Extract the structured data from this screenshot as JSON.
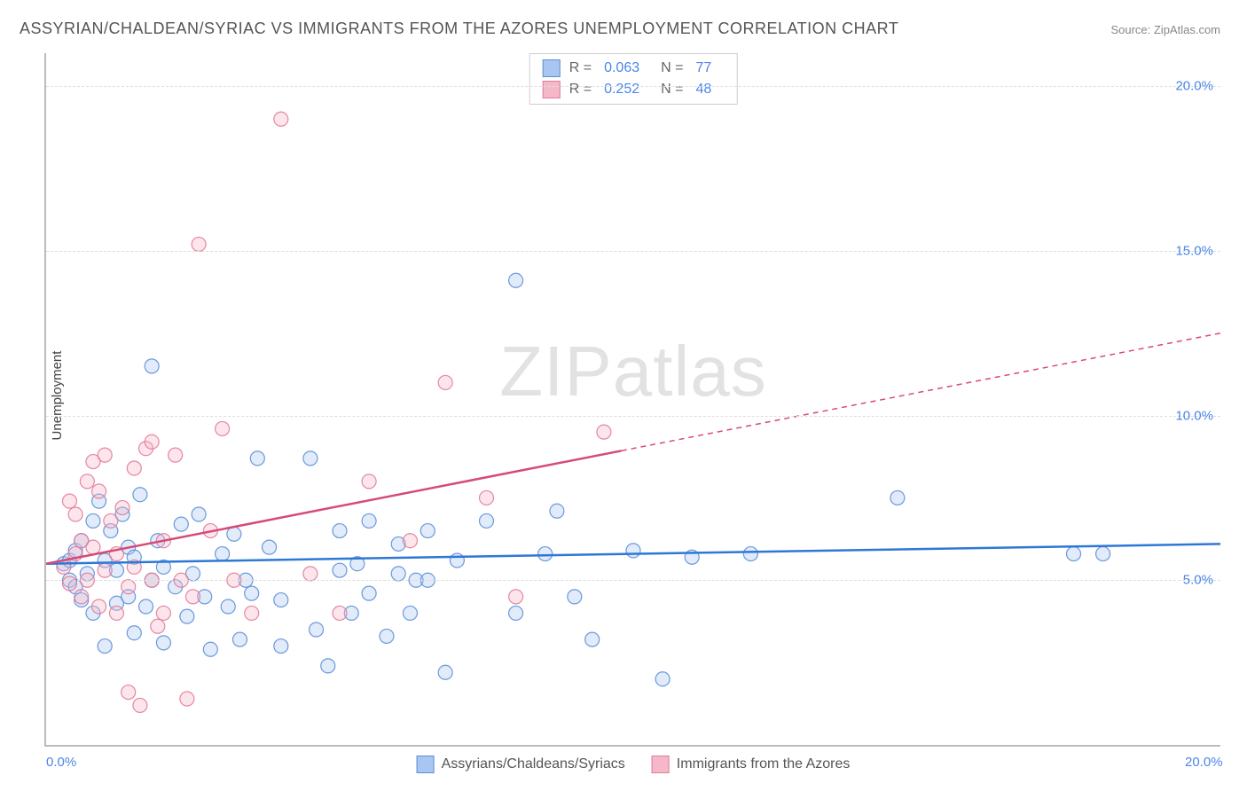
{
  "title": "ASSYRIAN/CHALDEAN/SYRIAC VS IMMIGRANTS FROM THE AZORES UNEMPLOYMENT CORRELATION CHART",
  "source": "Source: ZipAtlas.com",
  "watermark": "ZIPatlas",
  "yaxis_title": "Unemployment",
  "chart": {
    "type": "scatter",
    "background_color": "#ffffff",
    "grid_color": "#dddddd",
    "grid_dash": "4 4",
    "axis_color": "#bbbbbb",
    "marker_radius": 8,
    "marker_fill_opacity": 0.35,
    "xlim": [
      0,
      20
    ],
    "ylim": [
      0,
      21
    ],
    "xticks": [
      {
        "v": 0.0,
        "label": "0.0%"
      },
      {
        "v": 20.0,
        "label": "20.0%"
      }
    ],
    "yticks": [
      {
        "v": 5.0,
        "label": "5.0%"
      },
      {
        "v": 10.0,
        "label": "10.0%"
      },
      {
        "v": 15.0,
        "label": "15.0%"
      },
      {
        "v": 20.0,
        "label": "20.0%"
      }
    ],
    "series": [
      {
        "id": "assyrians",
        "label": "Assyrians/Chaldeans/Syriacs",
        "color_fill": "#a8c6f0",
        "color_stroke": "#5b8fd8",
        "trend_color": "#2d78d6",
        "R": "0.063",
        "N": "77",
        "trend": {
          "x1": 0.0,
          "y1": 5.5,
          "x2": 20.0,
          "y2": 6.1,
          "solid_until_x": 20.0
        },
        "points": [
          [
            0.3,
            5.5
          ],
          [
            0.4,
            5.0
          ],
          [
            0.4,
            5.6
          ],
          [
            0.5,
            4.8
          ],
          [
            0.5,
            5.9
          ],
          [
            0.6,
            6.2
          ],
          [
            0.6,
            4.4
          ],
          [
            0.7,
            5.2
          ],
          [
            0.8,
            6.8
          ],
          [
            0.8,
            4.0
          ],
          [
            0.9,
            7.4
          ],
          [
            1.0,
            3.0
          ],
          [
            1.0,
            5.6
          ],
          [
            1.1,
            6.5
          ],
          [
            1.2,
            4.3
          ],
          [
            1.2,
            5.3
          ],
          [
            1.3,
            7.0
          ],
          [
            1.4,
            4.5
          ],
          [
            1.4,
            6.0
          ],
          [
            1.5,
            3.4
          ],
          [
            1.5,
            5.7
          ],
          [
            1.6,
            7.6
          ],
          [
            1.7,
            4.2
          ],
          [
            1.8,
            5.0
          ],
          [
            1.8,
            11.5
          ],
          [
            1.9,
            6.2
          ],
          [
            2.0,
            3.1
          ],
          [
            2.0,
            5.4
          ],
          [
            2.2,
            4.8
          ],
          [
            2.3,
            6.7
          ],
          [
            2.4,
            3.9
          ],
          [
            2.5,
            5.2
          ],
          [
            2.6,
            7.0
          ],
          [
            2.7,
            4.5
          ],
          [
            2.8,
            2.9
          ],
          [
            3.0,
            5.8
          ],
          [
            3.1,
            4.2
          ],
          [
            3.2,
            6.4
          ],
          [
            3.3,
            3.2
          ],
          [
            3.4,
            5.0
          ],
          [
            3.5,
            4.6
          ],
          [
            3.6,
            8.7
          ],
          [
            3.8,
            6.0
          ],
          [
            4.0,
            3.0
          ],
          [
            4.0,
            4.4
          ],
          [
            4.5,
            8.7
          ],
          [
            4.6,
            3.5
          ],
          [
            4.8,
            2.4
          ],
          [
            5.0,
            5.3
          ],
          [
            5.0,
            6.5
          ],
          [
            5.2,
            4.0
          ],
          [
            5.3,
            5.5
          ],
          [
            5.5,
            6.8
          ],
          [
            5.5,
            4.6
          ],
          [
            5.8,
            3.3
          ],
          [
            6.0,
            5.2
          ],
          [
            6.0,
            6.1
          ],
          [
            6.2,
            4.0
          ],
          [
            6.3,
            5.0
          ],
          [
            6.5,
            6.5
          ],
          [
            6.5,
            5.0
          ],
          [
            6.8,
            2.2
          ],
          [
            7.0,
            5.6
          ],
          [
            7.5,
            6.8
          ],
          [
            8.0,
            4.0
          ],
          [
            8.0,
            14.1
          ],
          [
            8.5,
            5.8
          ],
          [
            8.7,
            7.1
          ],
          [
            9.0,
            4.5
          ],
          [
            9.3,
            3.2
          ],
          [
            10.0,
            5.9
          ],
          [
            10.5,
            2.0
          ],
          [
            11.0,
            5.7
          ],
          [
            12.0,
            5.8
          ],
          [
            14.5,
            7.5
          ],
          [
            17.5,
            5.8
          ],
          [
            18.0,
            5.8
          ]
        ]
      },
      {
        "id": "azores",
        "label": "Immigrants from the Azores",
        "color_fill": "#f5b8c8",
        "color_stroke": "#e27a9a",
        "trend_color": "#d64a77",
        "R": "0.252",
        "N": "48",
        "trend": {
          "x1": 0.0,
          "y1": 5.5,
          "x2": 20.0,
          "y2": 12.5,
          "solid_until_x": 9.8
        },
        "points": [
          [
            0.3,
            5.4
          ],
          [
            0.4,
            7.4
          ],
          [
            0.4,
            4.9
          ],
          [
            0.5,
            5.8
          ],
          [
            0.5,
            7.0
          ],
          [
            0.6,
            6.2
          ],
          [
            0.6,
            4.5
          ],
          [
            0.7,
            8.0
          ],
          [
            0.7,
            5.0
          ],
          [
            0.8,
            8.6
          ],
          [
            0.8,
            6.0
          ],
          [
            0.9,
            7.7
          ],
          [
            0.9,
            4.2
          ],
          [
            1.0,
            5.3
          ],
          [
            1.0,
            8.8
          ],
          [
            1.1,
            6.8
          ],
          [
            1.2,
            4.0
          ],
          [
            1.2,
            5.8
          ],
          [
            1.3,
            7.2
          ],
          [
            1.4,
            1.6
          ],
          [
            1.4,
            4.8
          ],
          [
            1.5,
            8.4
          ],
          [
            1.5,
            5.4
          ],
          [
            1.6,
            1.2
          ],
          [
            1.7,
            9.0
          ],
          [
            1.8,
            5.0
          ],
          [
            1.8,
            9.2
          ],
          [
            1.9,
            3.6
          ],
          [
            2.0,
            6.2
          ],
          [
            2.0,
            4.0
          ],
          [
            2.2,
            8.8
          ],
          [
            2.3,
            5.0
          ],
          [
            2.4,
            1.4
          ],
          [
            2.5,
            4.5
          ],
          [
            2.6,
            15.2
          ],
          [
            2.8,
            6.5
          ],
          [
            3.0,
            9.6
          ],
          [
            3.2,
            5.0
          ],
          [
            3.5,
            4.0
          ],
          [
            4.0,
            19.0
          ],
          [
            4.5,
            5.2
          ],
          [
            5.0,
            4.0
          ],
          [
            5.5,
            8.0
          ],
          [
            6.2,
            6.2
          ],
          [
            6.8,
            11.0
          ],
          [
            7.5,
            7.5
          ],
          [
            8.0,
            4.5
          ],
          [
            9.5,
            9.5
          ]
        ]
      }
    ]
  },
  "stat_legend": {
    "R_label": "R =",
    "N_label": "N ="
  }
}
